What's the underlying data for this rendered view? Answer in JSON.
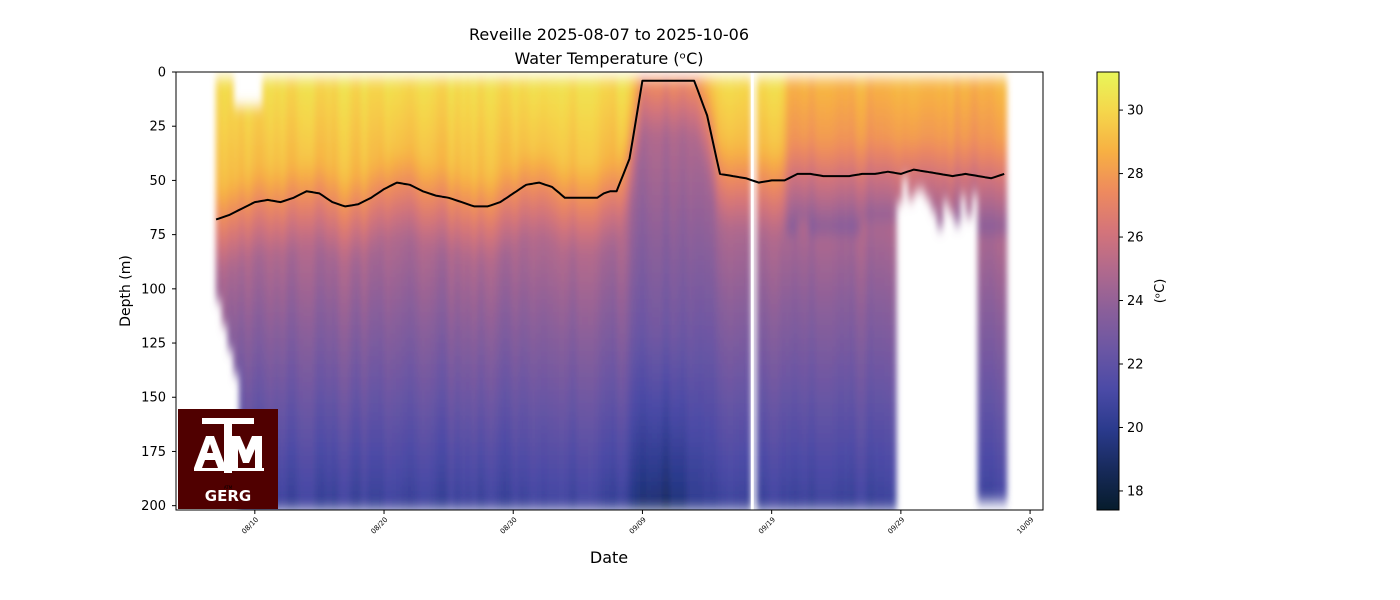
{
  "chart_data": {
    "type": "heatmap",
    "title_line1": "Reveille 2025-08-07 to 2025-10-06",
    "title_line2": "Water Temperature (ᵒC)",
    "xlabel": "Date",
    "ylabel": "Depth (m)",
    "colorbar_label": "(ᵒC)",
    "x_ticks": [
      "08/10",
      "08/20",
      "08/30",
      "09/09",
      "09/19",
      "09/29",
      "10/09"
    ],
    "x_tick_days": [
      3,
      13,
      23,
      33,
      43,
      53,
      63
    ],
    "x_range_days": [
      -3.1,
      64.0
    ],
    "y_ticks": [
      0,
      25,
      50,
      75,
      100,
      125,
      150,
      175,
      200
    ],
    "y_range": [
      0,
      202
    ],
    "colorbar_ticks": [
      18,
      20,
      22,
      24,
      26,
      28,
      30
    ],
    "colorbar_range": [
      17.4,
      31.2
    ],
    "data_day_range": [
      0,
      61
    ],
    "gap_day": 41.5,
    "mixed_layer_depth": {
      "days": [
        0,
        1,
        2,
        3,
        4,
        5,
        6,
        7,
        8,
        9,
        10,
        11,
        12,
        13,
        14,
        15,
        16,
        17,
        18,
        19,
        20,
        21,
        22,
        23,
        24,
        25,
        26,
        27,
        28,
        29,
        29.5,
        30,
        30.5,
        31,
        32,
        33,
        34,
        35,
        35.5,
        36,
        36.5,
        37,
        38,
        39,
        40,
        41,
        42,
        43,
        44,
        45,
        46,
        47,
        48,
        49,
        50,
        51,
        52,
        53,
        54,
        55,
        56,
        57,
        58,
        59,
        60,
        61
      ],
      "depth_m": [
        68,
        66,
        63,
        60,
        59,
        60,
        58,
        55,
        56,
        60,
        62,
        61,
        58,
        54,
        51,
        52,
        55,
        57,
        58,
        60,
        62,
        62,
        60,
        56,
        52,
        51,
        53,
        58,
        58,
        58,
        58,
        56,
        55,
        55,
        40,
        4,
        4,
        4,
        4,
        4,
        4,
        4,
        20,
        47,
        48,
        49,
        51,
        50,
        50,
        47,
        47,
        48,
        48,
        48,
        47,
        47,
        46,
        47,
        45,
        46,
        47,
        48,
        47,
        48,
        49,
        47
      ]
    },
    "logo_text": [
      "ATM",
      "GERG"
    ],
    "colors": {
      "colormap": [
        "#061c2c",
        "#172a5a",
        "#2a3a8c",
        "#4a4aa6",
        "#6a56a4",
        "#8a5f9a",
        "#b0698d",
        "#d4747a",
        "#ee8a5e",
        "#f7b043",
        "#f5d64b",
        "#e8f659"
      ],
      "mld_line": "#000000",
      "logo_bg": "#500000"
    }
  }
}
